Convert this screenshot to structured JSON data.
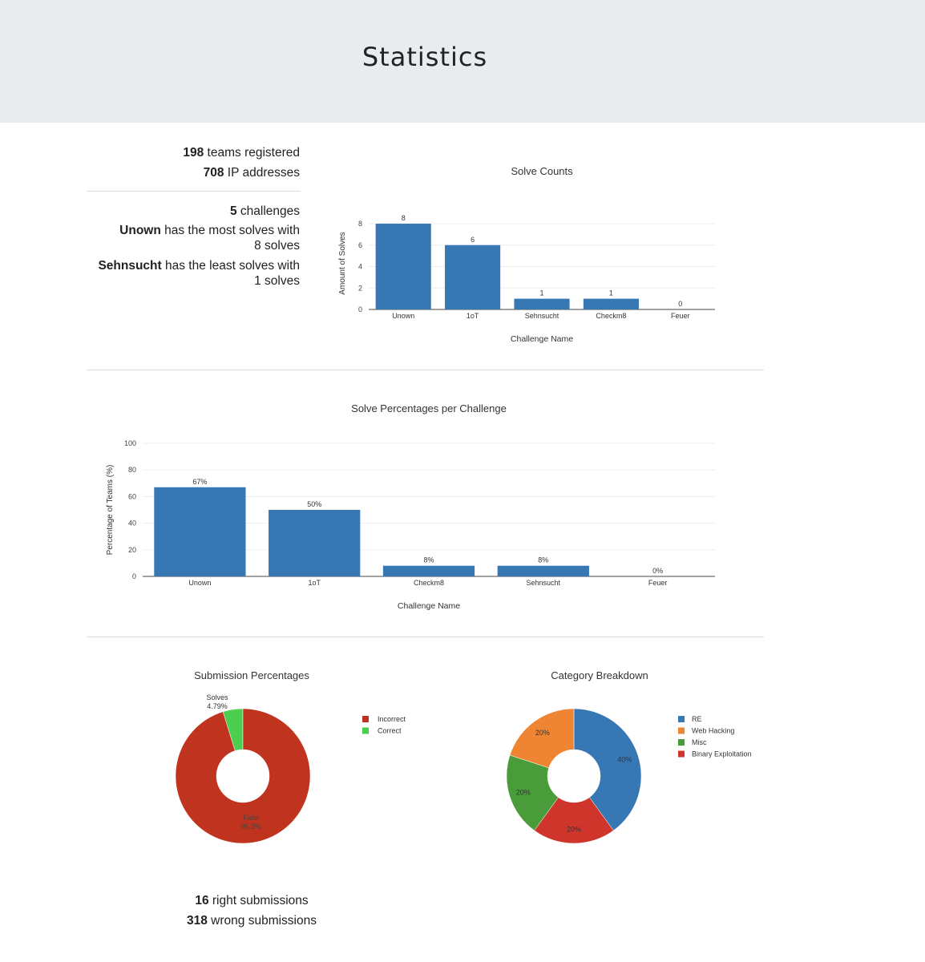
{
  "header": {
    "title": "Statistics"
  },
  "teams": {
    "count": "198",
    "label": " teams registered"
  },
  "ips": {
    "count": "708",
    "label": " IP addresses"
  },
  "challenges": {
    "count": "5",
    "label": " challenges"
  },
  "most": {
    "name": "Unown",
    "text1": " has the most solves with",
    "text2": "8 solves"
  },
  "least": {
    "name": "Sehnsucht",
    "text1": " has the least solves with",
    "text2": "1 solves"
  },
  "submissions": {
    "right_count": "16",
    "right_label": " right submissions",
    "wrong_count": "318",
    "wrong_label": " wrong submissions"
  },
  "chart_data": [
    {
      "type": "bar",
      "title": "Solve Counts",
      "xlabel": "Challenge Name",
      "ylabel": "Amount of Solves",
      "categories": [
        "Unown",
        "1oT",
        "Sehnsucht",
        "Checkm8",
        "Feuer"
      ],
      "values": [
        8,
        6,
        1,
        1,
        0
      ],
      "labels": [
        "8",
        "6",
        "1",
        "1",
        "0"
      ],
      "yticks": [
        "0",
        "2",
        "4",
        "6",
        "8"
      ],
      "ylim": [
        0,
        8.6
      ],
      "color": "#3778b4"
    },
    {
      "type": "bar",
      "title": "Solve Percentages per Challenge",
      "xlabel": "Challenge Name",
      "ylabel": "Percentage of Teams (%)",
      "categories": [
        "Unown",
        "1oT",
        "Checkm8",
        "Sehnsucht",
        "Feuer"
      ],
      "values": [
        67,
        50,
        8,
        8,
        0
      ],
      "labels": [
        "67%",
        "50%",
        "8%",
        "8%",
        "0%"
      ],
      "yticks": [
        "0",
        "20",
        "40",
        "60",
        "80",
        "100"
      ],
      "ylim": [
        0,
        100
      ],
      "color": "#3778b4"
    },
    {
      "type": "pie",
      "title": "Submission Percentages",
      "slices": [
        {
          "name": "Incorrect",
          "value": 95.2,
          "inner_label": "Fails",
          "pct_label": "95.2%",
          "color": "#c0331f"
        },
        {
          "name": "Correct",
          "value": 4.79,
          "inner_label": "Solves",
          "pct_label": "4.79%",
          "color": "#4ece4e"
        }
      ]
    },
    {
      "type": "pie",
      "title": "Category Breakdown",
      "slices": [
        {
          "name": "RE",
          "value": 40,
          "pct_label": "40%",
          "color": "#3778b4"
        },
        {
          "name": "Binary Exploitation",
          "value": 20,
          "pct_label": "20%",
          "color": "#d0352c"
        },
        {
          "name": "Misc",
          "value": 20,
          "pct_label": "20%",
          "color": "#4a9b3a"
        },
        {
          "name": "Web Hacking",
          "value": 20,
          "pct_label": "20%",
          "color": "#ef8533"
        }
      ],
      "legend_order": [
        "RE",
        "Web Hacking",
        "Misc",
        "Binary Exploitation"
      ]
    }
  ]
}
